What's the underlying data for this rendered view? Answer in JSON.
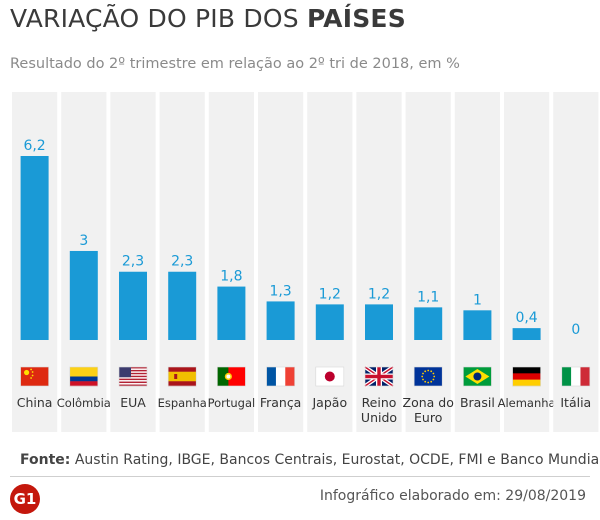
{
  "header": {
    "title_prefix": "VARIAÇÃO DO PIB DOS",
    "title_bold": "PAÍSES",
    "subtitle": "Resultado do 2º trimestre em relação ao 2º tri de 2018, em %"
  },
  "chart_data": {
    "type": "bar",
    "categories": [
      "China",
      "Colômbia",
      "EUA",
      "Espanha",
      "Portugal",
      "França",
      "Japão",
      "Reino Unido",
      "Zona do Euro",
      "Brasil",
      "Alemanha",
      "Itália"
    ],
    "values": [
      6.2,
      3,
      2.3,
      2.3,
      1.8,
      1.3,
      1.2,
      1.2,
      1.1,
      1,
      0.4,
      0
    ],
    "value_labels": [
      "6,2",
      "3",
      "2,3",
      "2,3",
      "1,8",
      "1,3",
      "1,2",
      "1,2",
      "1,1",
      "1",
      "0,4",
      "0"
    ],
    "flags": [
      "china-flag-icon",
      "colombia-flag-icon",
      "usa-flag-icon",
      "spain-flag-icon",
      "portugal-flag-icon",
      "france-flag-icon",
      "japan-flag-icon",
      "uk-flag-icon",
      "eu-flag-icon",
      "brazil-flag-icon",
      "germany-flag-icon",
      "italy-flag-icon"
    ],
    "bar_color": "#1a9ad6",
    "label_color": "#1a9ad6",
    "column_bg": "#f1f1f1",
    "ylim": [
      0,
      6.2
    ],
    "grid": false
  },
  "footer": {
    "source_label": "Fonte:",
    "source_text": "Austin Rating, IBGE, Bancos Centrais, Eurostat, OCDE, FMI e Banco Mundial",
    "logo": "G1",
    "credit": "Infográfico elaborado em: 29/08/2019"
  }
}
